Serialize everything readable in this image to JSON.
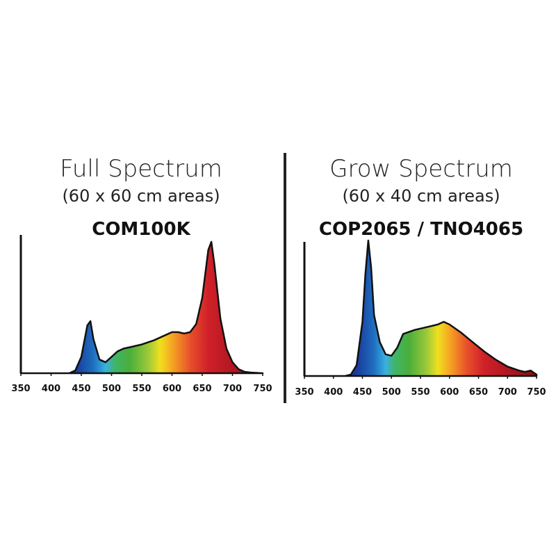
{
  "chart_data": [
    {
      "type": "area",
      "title": "Full Spectrum",
      "subtitle": "(60 x 60 cm areas)",
      "annotation": "COM100K",
      "color": "#111111",
      "x": [
        350,
        430,
        440,
        450,
        460,
        465,
        470,
        480,
        490,
        500,
        510,
        520,
        530,
        550,
        570,
        590,
        600,
        610,
        620,
        630,
        640,
        650,
        660,
        665,
        670,
        680,
        690,
        700,
        710,
        720,
        730,
        750
      ],
      "values": [
        0,
        0,
        2,
        12,
        35,
        38,
        25,
        10,
        8,
        12,
        16,
        18,
        19,
        21,
        24,
        28,
        30,
        30,
        29,
        30,
        36,
        55,
        90,
        96,
        80,
        40,
        18,
        8,
        3,
        1,
        0.5,
        0
      ],
      "xlim": [
        350,
        750
      ],
      "ylim": [
        0,
        100
      ],
      "xticks": [
        350,
        400,
        450,
        500,
        550,
        600,
        650,
        700,
        750
      ]
    },
    {
      "type": "area",
      "title": "Grow Spectrum",
      "subtitle": "(60 x 40 cm areas)",
      "annotation": "COP2065 / TNO4065",
      "color": "#111111",
      "x": [
        350,
        420,
        430,
        440,
        450,
        455,
        460,
        465,
        470,
        480,
        490,
        500,
        510,
        520,
        540,
        560,
        580,
        590,
        600,
        620,
        640,
        660,
        680,
        700,
        720,
        730,
        740,
        750
      ],
      "values": [
        0,
        0,
        1,
        8,
        40,
        75,
        100,
        80,
        45,
        25,
        16,
        15,
        21,
        31,
        34,
        36,
        38,
        40,
        38,
        32,
        25,
        18,
        12,
        7,
        4,
        3,
        4,
        1
      ],
      "xlim": [
        350,
        750
      ],
      "ylim": [
        0,
        100
      ],
      "xticks": [
        350,
        400,
        450,
        500,
        550,
        600,
        650,
        700,
        750
      ]
    }
  ]
}
